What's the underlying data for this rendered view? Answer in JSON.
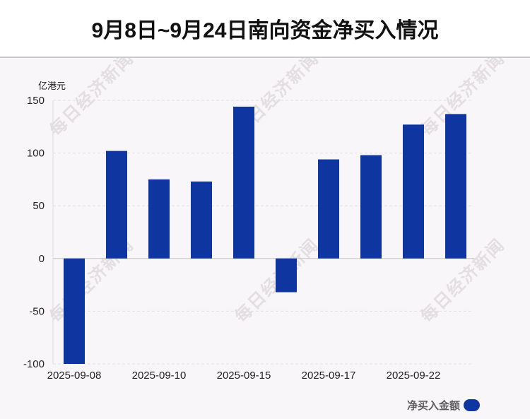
{
  "watermark": "每日经济新闻",
  "colors": {
    "bar": "#0f36a0",
    "background": "#f8f6f8"
  },
  "chart_data": {
    "type": "bar",
    "title": "9月8日~9月24日南向资金净买入情况",
    "ylabel": "亿港元",
    "categories": [
      "2025-09-08",
      "",
      "2025-09-10",
      "",
      "2025-09-15",
      "",
      "2025-09-17",
      "",
      "2025-09-22",
      ""
    ],
    "series": [
      {
        "name": "净买入金额",
        "values": [
          -100,
          102,
          75,
          73,
          144,
          -32,
          94,
          98,
          127,
          137
        ]
      }
    ],
    "yticks": [
      150,
      100,
      50,
      0,
      -50,
      -100
    ],
    "ylim": [
      -100,
      150
    ],
    "grid": true,
    "legend": "bottom-right"
  }
}
